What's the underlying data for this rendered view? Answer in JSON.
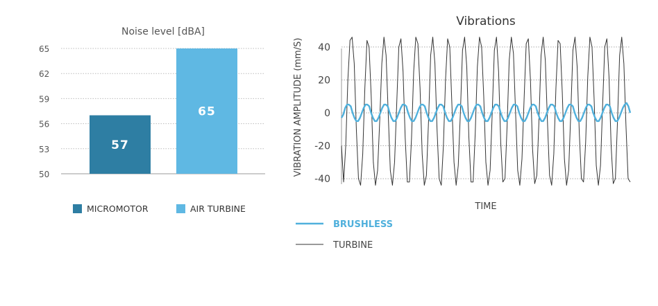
{
  "chart_data": [
    {
      "type": "bar",
      "title": "Noise level  [dBA]",
      "categories": [
        "MICROMOTOR",
        "AIR TURBINE"
      ],
      "values": [
        57,
        65
      ],
      "value_labels": [
        "57",
        "65"
      ],
      "colors": [
        "#2e7ea3",
        "#5fb8e3"
      ],
      "ylim": [
        50,
        65
      ],
      "yticks": [
        "50",
        "53",
        "56",
        "59",
        "62",
        "65"
      ],
      "grid": true,
      "legend_position": "bottom",
      "legend": [
        {
          "label": "MICROMOTOR",
          "color": "#2e7ea3"
        },
        {
          "label": "AIR TURBINE",
          "color": "#5fb8e3"
        }
      ]
    },
    {
      "type": "line",
      "title": "Vibrations",
      "xlabel": "TIME",
      "ylabel": "VIBRATION AMPLITUDE (mm/S)",
      "ylim": [
        -45,
        45
      ],
      "yticks": [
        "40",
        "20",
        "0",
        "-20",
        "-40"
      ],
      "grid": true,
      "legend_position": "bottom-left",
      "series": [
        {
          "name": "BRUSHLESS",
          "color": "#4fb0dc",
          "values": [
            -3,
            -1,
            3,
            5,
            5,
            4,
            0,
            -3,
            -5,
            -5,
            -3,
            0,
            3,
            5,
            5,
            4,
            0,
            -3,
            -5,
            -5,
            -3,
            0,
            3,
            5,
            5,
            4,
            0,
            -3,
            -5,
            -5,
            -3,
            0,
            3,
            5,
            5,
            4,
            0,
            -3,
            -5,
            -5,
            -3,
            0,
            3,
            5,
            5,
            4,
            0,
            -3,
            -5,
            -5,
            -3,
            0,
            3,
            5,
            5,
            4,
            0,
            -3,
            -5,
            -5,
            -3,
            0,
            3,
            5,
            5,
            4,
            0,
            -3,
            -5,
            -5,
            -3,
            0,
            3,
            5,
            5,
            4,
            0,
            -3,
            -5,
            -5,
            -3,
            0,
            3,
            5,
            5,
            4,
            0,
            -3,
            -5,
            -5,
            -3,
            0,
            3,
            5,
            5,
            4,
            0,
            -3,
            -5,
            -5,
            -3,
            0,
            3,
            5,
            5,
            4,
            0,
            -3,
            -5,
            -5,
            -3,
            0,
            3,
            5,
            5,
            4,
            0,
            -3,
            -5,
            -5,
            -3,
            0,
            3,
            5,
            5,
            4,
            0,
            -3,
            -5,
            -5,
            -3,
            0,
            3,
            5,
            5,
            4,
            0,
            -3,
            -5,
            -5,
            -3,
            0,
            3,
            5,
            5,
            4,
            0,
            -3,
            -5,
            -5,
            -3,
            0,
            3,
            5,
            6,
            4,
            0
          ]
        },
        {
          "name": "TURBINE",
          "color": "#333333",
          "values": [
            -20,
            -42,
            -20,
            20,
            44,
            46,
            30,
            -10,
            -40,
            -44,
            -25,
            15,
            44,
            40,
            10,
            -30,
            -44,
            -35,
            -5,
            30,
            46,
            35,
            0,
            -35,
            -44,
            -30,
            5,
            40,
            45,
            25,
            -15,
            -42,
            -42,
            -15,
            25,
            46,
            42,
            15,
            -25,
            -44,
            -38,
            -5,
            35,
            46,
            30,
            -10,
            -40,
            -44,
            -20,
            20,
            45,
            40,
            5,
            -30,
            -44,
            -32,
            0,
            38,
            46,
            28,
            -15,
            -42,
            -42,
            -12,
            28,
            46,
            40,
            10,
            -30,
            -44,
            -35,
            0,
            38,
            46,
            25,
            -18,
            -42,
            -40,
            -8,
            32,
            46,
            36,
            0,
            -35,
            -44,
            -28,
            8,
            42,
            45,
            20,
            -22,
            -43,
            -38,
            -5,
            35,
            46,
            32,
            -5,
            -38,
            -44,
            -25,
            15,
            44,
            42,
            12,
            -28,
            -44,
            -35,
            0,
            38,
            46,
            28,
            -12,
            -40,
            -42,
            -18,
            22,
            46,
            40,
            8,
            -32,
            -44,
            -32,
            5,
            40,
            45,
            22,
            -20,
            -43,
            -40,
            -5,
            35,
            46,
            30,
            -8,
            -40,
            -42
          ]
        }
      ]
    }
  ]
}
